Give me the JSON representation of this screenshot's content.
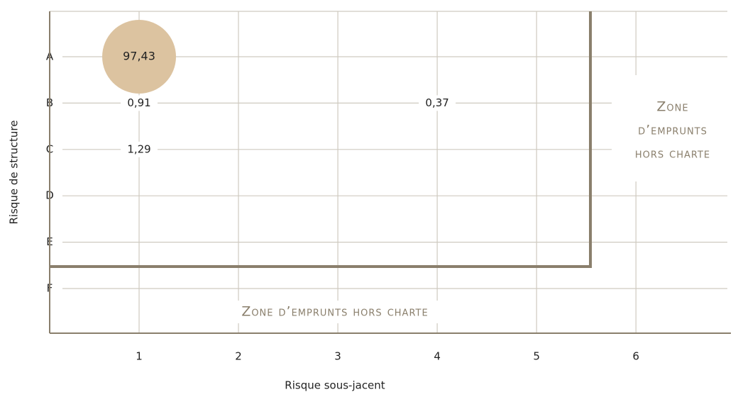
{
  "chart_data": {
    "type": "bubble",
    "x_label": "Risque sous-jacent",
    "y_label": "Risque de structure",
    "categories": [
      "A",
      "B",
      "C",
      "D",
      "E",
      "F"
    ],
    "xlim": [
      0.1,
      6.92
    ],
    "xticks": [
      1,
      2,
      3,
      4,
      5,
      6
    ],
    "x": [
      1,
      1,
      1,
      4
    ],
    "y": [
      "A",
      "B",
      "C",
      "B"
    ],
    "values": [
      97.43,
      0.91,
      1.29,
      0.37
    ],
    "value_labels": [
      "97,43",
      "0,91",
      "1,29",
      "0,37"
    ],
    "color": "#dcc3a0",
    "grid": true,
    "annotations": {
      "right": [
        "Zone",
        "d’emprunts",
        "hors charte"
      ],
      "bottom": "Zone d’emprunts hors charte"
    }
  }
}
